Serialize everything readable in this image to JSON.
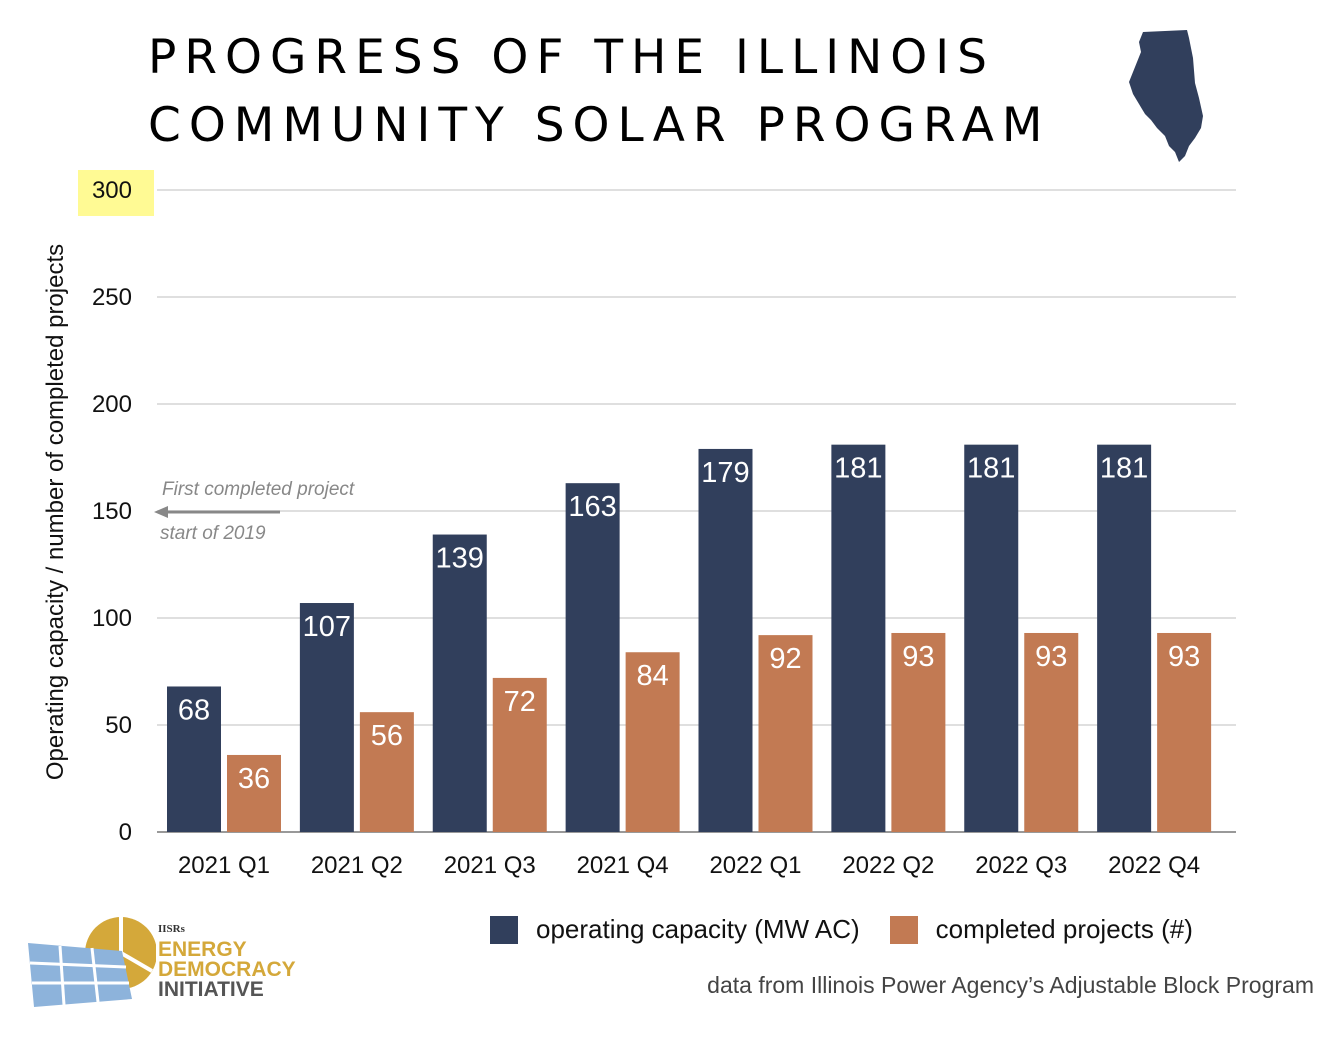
{
  "title": {
    "line1": "PROGRESS OF THE ILLINOIS",
    "line2": "COMMUNITY SOLAR PROGRAM",
    "icon": "illinois-state-icon"
  },
  "colors": {
    "capacity": "#313F5C",
    "projects": "#C27A53",
    "highlight": "#FFFA94",
    "grid": "#CCCCCC"
  },
  "annotation": {
    "line1": "First completed project",
    "line2": "start of 2019"
  },
  "legend": {
    "capacity_label": "operating capacity (MW AC)",
    "projects_label": "completed projects (#)"
  },
  "source": "data from Illinois Power Agency’s Adjustable Block Program",
  "logo": {
    "small": "IISRs",
    "line1": "ENERGY",
    "line2": "DEMOCRACY",
    "line3": "INITIATIVE"
  },
  "chart_data": {
    "type": "bar",
    "title": "PROGRESS OF THE ILLINOIS COMMUNITY SOLAR PROGRAM",
    "xlabel": "",
    "ylabel": "Operating capacity / number of completed projects",
    "ylim": [
      0,
      300
    ],
    "yticks": [
      0,
      50,
      100,
      150,
      200,
      250,
      300
    ],
    "highlighted_ytick": 300,
    "grid": true,
    "legend_position": "bottom",
    "categories": [
      "2021 Q1",
      "2021 Q2",
      "2021 Q3",
      "2021 Q4",
      "2022 Q1",
      "2022 Q2",
      "2022 Q3",
      "2022 Q4"
    ],
    "series": [
      {
        "name": "operating capacity (MW AC)",
        "values": [
          68,
          107,
          139,
          163,
          179,
          181,
          181,
          181
        ]
      },
      {
        "name": "completed projects (#)",
        "values": [
          36,
          56,
          72,
          84,
          92,
          93,
          93,
          93
        ]
      }
    ]
  }
}
